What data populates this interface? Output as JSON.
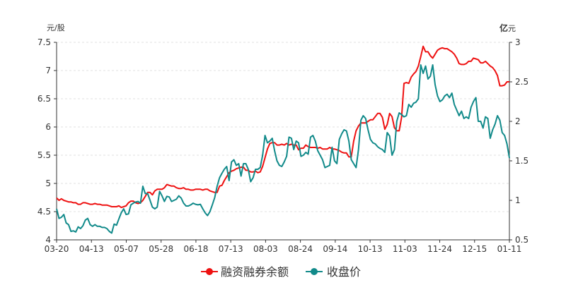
{
  "chart_data": {
    "type": "line",
    "left_axis_unit": "元/股",
    "right_axis_unit_bold": "亿",
    "right_axis_unit_rest": "元",
    "x_ticks": [
      "03-20",
      "04-13",
      "05-07",
      "05-28",
      "06-18",
      "07-13",
      "08-03",
      "08-24",
      "09-14",
      "10-13",
      "11-03",
      "11-24",
      "12-15",
      "01-11"
    ],
    "y_left": {
      "min": 4,
      "max": 7.5,
      "ticks": [
        "4",
        "4.5",
        "5",
        "5.5",
        "6",
        "6.5",
        "7",
        "7.5"
      ]
    },
    "y_right": {
      "min": 0.5,
      "max": 3,
      "ticks": [
        "0.5",
        "1",
        "1.5",
        "2",
        "2.5",
        "3"
      ]
    },
    "grid": "horizontal-dashed",
    "legend_position": "bottom-center",
    "series": [
      {
        "name": "融资融券余额",
        "axis": "right",
        "color": "#ee1111",
        "values": [
          1.03,
          1.0,
          1.02,
          1.0,
          0.99,
          0.98,
          0.98,
          0.97,
          0.97,
          0.95,
          0.95,
          0.97,
          0.97,
          0.96,
          0.95,
          0.95,
          0.96,
          0.95,
          0.95,
          0.94,
          0.94,
          0.94,
          0.93,
          0.92,
          0.92,
          0.92,
          0.93,
          0.91,
          0.92,
          0.93,
          0.97,
          0.99,
          0.99,
          0.97,
          0.96,
          0.97,
          1.0,
          1.05,
          1.1,
          1.1,
          1.07,
          1.12,
          1.14,
          1.14,
          1.14,
          1.16,
          1.2,
          1.19,
          1.18,
          1.18,
          1.16,
          1.15,
          1.15,
          1.16,
          1.14,
          1.14,
          1.13,
          1.13,
          1.14,
          1.14,
          1.14,
          1.13,
          1.14,
          1.14,
          1.12,
          1.11,
          1.1,
          1.1,
          1.18,
          1.19,
          1.25,
          1.3,
          1.35,
          1.37,
          1.38,
          1.4,
          1.41,
          1.42,
          1.42,
          1.38,
          1.38,
          1.36,
          1.36,
          1.37,
          1.35,
          1.36,
          1.43,
          1.54,
          1.65,
          1.72,
          1.73,
          1.73,
          1.7,
          1.7,
          1.71,
          1.7,
          1.72,
          1.7,
          1.71,
          1.7,
          1.7,
          1.64,
          1.66,
          1.66,
          1.7,
          1.68,
          1.67,
          1.67,
          1.67,
          1.66,
          1.67,
          1.65,
          1.65,
          1.65,
          1.67,
          1.65,
          1.65,
          1.64,
          1.63,
          1.61,
          1.6,
          1.6,
          1.55,
          1.55,
          1.75,
          1.88,
          1.94,
          1.98,
          1.98,
          1.98,
          2.0,
          2.02,
          2.02,
          2.06,
          2.1,
          2.1,
          2.05,
          1.9,
          1.96,
          2.1,
          2.06,
          1.92,
          1.88,
          1.88,
          2.05,
          2.48,
          2.49,
          2.48,
          2.56,
          2.6,
          2.63,
          2.7,
          2.82,
          2.95,
          2.88,
          2.88,
          2.83,
          2.8,
          2.85,
          2.9,
          2.92,
          2.93,
          2.92,
          2.92,
          2.9,
          2.88,
          2.85,
          2.8,
          2.73,
          2.72,
          2.72,
          2.73,
          2.76,
          2.76,
          2.8,
          2.79,
          2.78,
          2.74,
          2.74,
          2.76,
          2.73,
          2.7,
          2.68,
          2.64,
          2.58,
          2.45,
          2.45,
          2.46,
          2.5,
          2.5
        ]
      },
      {
        "name": "收盘价",
        "axis": "left",
        "color": "#118a8a",
        "values": [
          4.55,
          4.38,
          4.4,
          4.45,
          4.3,
          4.27,
          4.15,
          4.16,
          4.14,
          4.23,
          4.2,
          4.25,
          4.35,
          4.38,
          4.27,
          4.24,
          4.27,
          4.24,
          4.24,
          4.22,
          4.22,
          4.2,
          4.15,
          4.12,
          4.28,
          4.26,
          4.37,
          4.48,
          4.55,
          4.45,
          4.46,
          4.62,
          4.65,
          4.67,
          4.68,
          4.65,
          4.95,
          4.82,
          4.82,
          4.7,
          4.58,
          4.55,
          4.58,
          4.86,
          4.78,
          4.68,
          4.77,
          4.76,
          4.68,
          4.7,
          4.72,
          4.78,
          4.74,
          4.65,
          4.6,
          4.6,
          4.62,
          4.65,
          4.63,
          4.62,
          4.63,
          4.55,
          4.48,
          4.43,
          4.5,
          4.62,
          4.75,
          4.95,
          5.1,
          5.18,
          5.25,
          5.3,
          5.05,
          5.38,
          5.42,
          5.32,
          5.35,
          5.13,
          5.35,
          5.35,
          5.25,
          5.03,
          5.1,
          5.25,
          5.25,
          5.28,
          5.5,
          5.85,
          5.72,
          5.75,
          5.8,
          5.58,
          5.4,
          5.32,
          5.3,
          5.38,
          5.48,
          5.82,
          5.8,
          5.6,
          5.75,
          5.72,
          5.48,
          5.5,
          5.55,
          5.52,
          5.82,
          5.85,
          5.75,
          5.58,
          5.5,
          5.42,
          5.28,
          5.3,
          5.32,
          5.64,
          5.4,
          5.35,
          5.78,
          5.88,
          5.95,
          5.93,
          5.75,
          5.42,
          5.35,
          5.28,
          5.6,
          6.12,
          6.2,
          6.15,
          5.95,
          5.78,
          5.72,
          5.7,
          5.65,
          5.62,
          5.6,
          5.55,
          5.9,
          5.84,
          5.5,
          5.6,
          6.1,
          6.25,
          6.22,
          6.18,
          6.2,
          6.4,
          6.35,
          6.42,
          6.44,
          6.5,
          7.1,
          6.95,
          7.08,
          6.85,
          6.9,
          7.1,
          6.75,
          6.55,
          6.45,
          6.48,
          6.55,
          6.58,
          6.52,
          6.6,
          6.4,
          6.3,
          6.2,
          6.28,
          6.15,
          6.18,
          6.15,
          6.35,
          6.45,
          6.52,
          6.1,
          6.1,
          5.98,
          6.18,
          6.15,
          5.8,
          5.95,
          6.05,
          6.2,
          6.12,
          5.9,
          5.85,
          5.7,
          5.45
        ]
      }
    ]
  }
}
